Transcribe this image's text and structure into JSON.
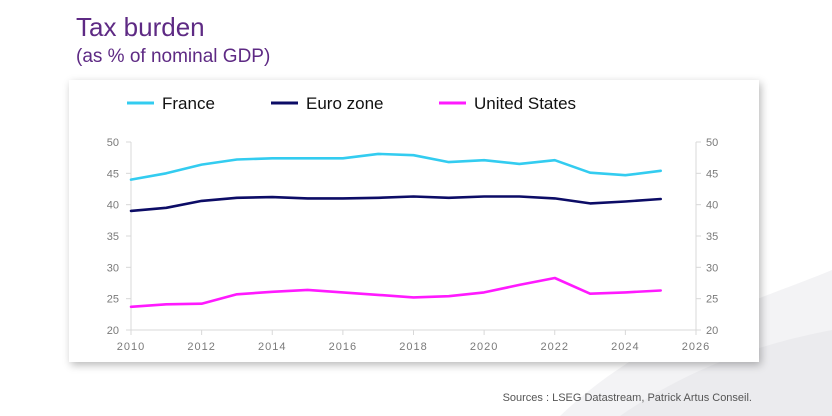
{
  "title": "Tax burden",
  "subtitle": "(as % of nominal GDP)",
  "source": "Sources : LSEG Datastream, Patrick Artus Conseil.",
  "chart_data": {
    "type": "line",
    "x": [
      2010,
      2011,
      2012,
      2013,
      2014,
      2015,
      2016,
      2017,
      2018,
      2019,
      2020,
      2021,
      2022,
      2023,
      2024,
      2025
    ],
    "xlim": [
      2010,
      2026
    ],
    "xticks": [
      2010,
      2012,
      2014,
      2016,
      2018,
      2020,
      2022,
      2024,
      2026
    ],
    "ylim": [
      20,
      50
    ],
    "yticks": [
      20,
      25,
      30,
      35,
      40,
      45,
      50
    ],
    "right_axis": true,
    "grid": false,
    "legend_position": "top",
    "series": [
      {
        "name": "France",
        "color": "#33ccf0",
        "values": [
          44.0,
          45.0,
          46.4,
          47.2,
          47.4,
          47.4,
          47.4,
          48.1,
          47.9,
          46.8,
          47.1,
          46.5,
          47.1,
          45.1,
          44.7,
          45.4
        ]
      },
      {
        "name": "Euro zone",
        "color": "#0c0c66",
        "values": [
          39.0,
          39.5,
          40.6,
          41.1,
          41.2,
          41.0,
          41.0,
          41.1,
          41.3,
          41.1,
          41.3,
          41.3,
          41.0,
          40.2,
          40.5,
          40.9
        ]
      },
      {
        "name": "United States",
        "color": "#ff1aff",
        "values": [
          23.7,
          24.1,
          24.2,
          25.7,
          26.1,
          26.4,
          26.0,
          25.6,
          25.2,
          25.4,
          26.0,
          27.2,
          28.3,
          25.8,
          26.0,
          26.3
        ]
      }
    ]
  }
}
